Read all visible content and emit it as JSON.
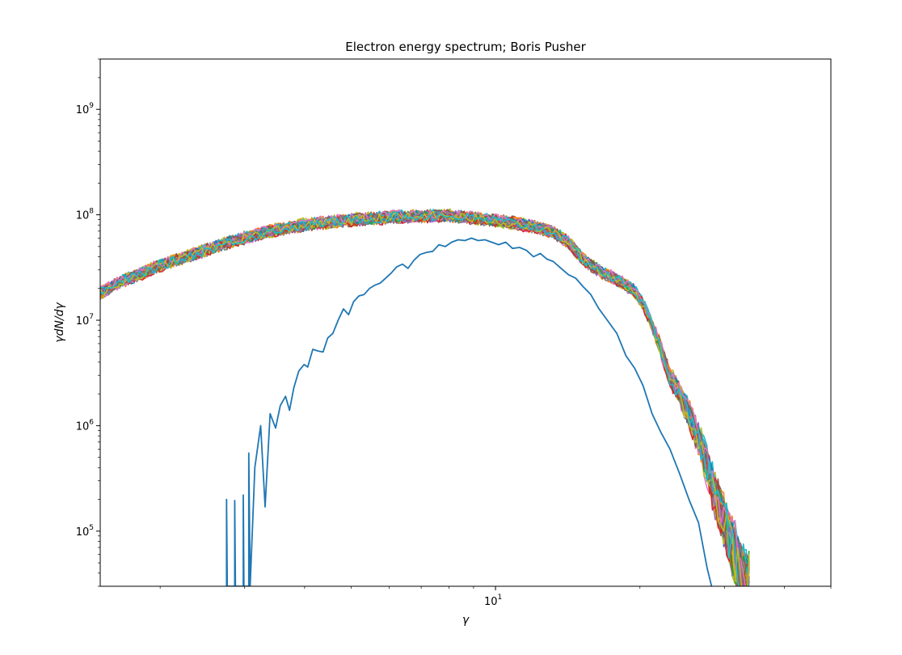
{
  "chart_data": {
    "type": "line",
    "title": "Electron energy spectrum; Boris Pusher",
    "xlabel": "γ",
    "ylabel": "γdN/dγ",
    "xscale": "log",
    "yscale": "log",
    "xlim": [
      1.5,
      50
    ],
    "ylim": [
      30000,
      3000000000
    ],
    "grid": false,
    "x_major_ticks": [
      {
        "value": 10,
        "base": "10",
        "exp": "1"
      }
    ],
    "y_major_ticks": [
      {
        "value": 100000,
        "base": "10",
        "exp": "5"
      },
      {
        "value": 1000000,
        "base": "10",
        "exp": "6"
      },
      {
        "value": 10000000,
        "base": "10",
        "exp": "7"
      },
      {
        "value": 100000000,
        "base": "10",
        "exp": "8"
      },
      {
        "value": 1000000000,
        "base": "10",
        "exp": "9"
      }
    ],
    "palette": [
      "#1f77b4",
      "#ff7f0e",
      "#2ca02c",
      "#d62728",
      "#9467bd",
      "#8c564b",
      "#e377c2",
      "#7f7f7f",
      "#bcbd22",
      "#17becf"
    ],
    "initial_spectrum": {
      "color": "#1f77b4",
      "points": [
        [
          2.75,
          30000
        ],
        [
          2.75,
          200000
        ],
        [
          2.76,
          30000
        ],
        [
          2.86,
          30000
        ],
        [
          2.86,
          195000
        ],
        [
          2.87,
          30000
        ],
        [
          2.98,
          30000
        ],
        [
          2.98,
          220000
        ],
        [
          2.99,
          30000
        ],
        [
          3.06,
          30000
        ],
        [
          3.06,
          550000
        ],
        [
          3.08,
          30000
        ],
        [
          3.15,
          400000
        ],
        [
          3.24,
          1000000
        ],
        [
          3.31,
          170000
        ],
        [
          3.39,
          1300000
        ],
        [
          3.48,
          950000
        ],
        [
          3.56,
          1550000
        ],
        [
          3.65,
          1900000
        ],
        [
          3.72,
          1400000
        ],
        [
          3.8,
          2300000
        ],
        [
          3.89,
          3300000
        ],
        [
          3.99,
          3800000
        ],
        [
          4.06,
          3600000
        ],
        [
          4.16,
          5300000
        ],
        [
          4.27,
          5100000
        ],
        [
          4.37,
          5000000
        ],
        [
          4.47,
          6800000
        ],
        [
          4.58,
          7500000
        ],
        [
          4.7,
          10000000
        ],
        [
          4.82,
          12800000
        ],
        [
          4.94,
          11300000
        ],
        [
          5.06,
          15000000
        ],
        [
          5.19,
          17000000
        ],
        [
          5.32,
          17500000
        ],
        [
          5.46,
          20000000
        ],
        [
          5.6,
          21500000
        ],
        [
          5.75,
          22500000
        ],
        [
          5.9,
          25000000
        ],
        [
          6.06,
          28000000
        ],
        [
          6.22,
          32000000
        ],
        [
          6.4,
          34000000
        ],
        [
          6.57,
          31000000
        ],
        [
          6.76,
          37000000
        ],
        [
          6.96,
          42000000
        ],
        [
          7.18,
          44000000
        ],
        [
          7.4,
          45000000
        ],
        [
          7.62,
          52000000
        ],
        [
          7.86,
          50000000
        ],
        [
          8.1,
          55000000
        ],
        [
          8.36,
          58000000
        ],
        [
          8.63,
          57000000
        ],
        [
          8.91,
          60000000
        ],
        [
          9.2,
          57000000
        ],
        [
          9.5,
          58000000
        ],
        [
          9.82,
          55000000
        ],
        [
          10.15,
          52000000
        ],
        [
          10.5,
          55000000
        ],
        [
          10.85,
          48000000
        ],
        [
          11.22,
          49000000
        ],
        [
          11.6,
          46000000
        ],
        [
          12.0,
          40000000
        ],
        [
          12.4,
          43000000
        ],
        [
          12.8,
          38000000
        ],
        [
          13.2,
          36000000
        ],
        [
          13.7,
          31000000
        ],
        [
          14.2,
          27000000
        ],
        [
          14.7,
          25000000
        ],
        [
          15.2,
          21000000
        ],
        [
          15.8,
          17500000
        ],
        [
          16.4,
          13000000
        ],
        [
          17.1,
          10000000
        ],
        [
          17.9,
          7500000
        ],
        [
          18.7,
          4600000
        ],
        [
          19.5,
          3500000
        ],
        [
          20.3,
          2400000
        ],
        [
          21.2,
          1300000
        ],
        [
          22.1,
          870000
        ],
        [
          23.1,
          600000
        ],
        [
          24.2,
          350000
        ],
        [
          25.3,
          200000
        ],
        [
          26.5,
          120000
        ],
        [
          27.6,
          45000
        ],
        [
          28.2,
          30000
        ]
      ]
    },
    "evolved_spectra": {
      "description_count": 60,
      "envelope": [
        [
          1.5,
          18000000
        ],
        [
          1.65,
          23000000
        ],
        [
          1.8,
          27000000
        ],
        [
          2.0,
          33000000
        ],
        [
          2.2,
          38000000
        ],
        [
          2.45,
          45000000
        ],
        [
          2.75,
          54000000
        ],
        [
          3.1,
          63000000
        ],
        [
          3.5,
          72000000
        ],
        [
          4.0,
          80000000
        ],
        [
          4.6,
          86000000
        ],
        [
          5.3,
          91000000
        ],
        [
          6.1,
          95000000
        ],
        [
          7.0,
          97000000
        ],
        [
          8.0,
          98000000
        ],
        [
          9.0,
          93000000
        ],
        [
          10.0,
          88000000
        ],
        [
          11.0,
          83000000
        ],
        [
          12.2,
          76000000
        ],
        [
          13.2,
          68000000
        ],
        [
          14.2,
          55000000
        ],
        [
          15.2,
          38000000
        ],
        [
          16.5,
          29000000
        ],
        [
          18.0,
          24000000
        ],
        [
          19.5,
          19000000
        ],
        [
          20.5,
          13000000
        ],
        [
          21.8,
          6500000
        ],
        [
          23.0,
          3000000
        ],
        [
          24.2,
          2000000
        ],
        [
          25.3,
          1300000
        ],
        [
          26.8,
          650000
        ],
        [
          28.0,
          320000
        ],
        [
          29.5,
          150000
        ],
        [
          31.0,
          75000
        ],
        [
          32.2,
          45000
        ],
        [
          33.0,
          30000
        ]
      ]
    }
  }
}
